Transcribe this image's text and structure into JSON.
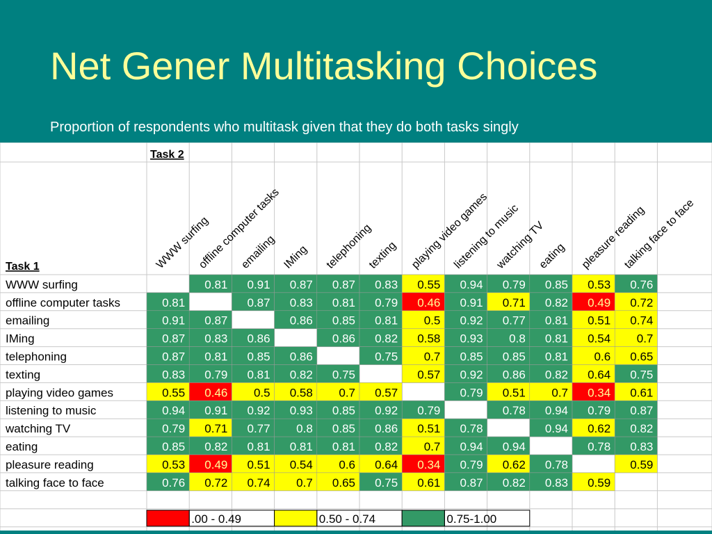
{
  "title": "Net Gener Multitasking Choices",
  "subtitle": "Proportion of respondents who multitask given that they do both tasks singly",
  "colors": {
    "background": "#008080",
    "title_text": "#FFFF99",
    "low": "#FF0000",
    "mid": "#FFFF00",
    "high": "#339966"
  },
  "chart_data": {
    "type": "heatmap",
    "title": "",
    "column_axis_label": "Task 2",
    "row_axis_label": "Task 1",
    "tasks": [
      "WWW surfing",
      "offline computer tasks",
      "emailing",
      "IMing",
      "telephoning",
      "texting",
      "playing video games",
      "listening to music",
      "watching TV",
      "eating",
      "pleasure reading",
      "talking face to face"
    ],
    "cells": [
      [
        "",
        "0.81",
        "0.91",
        "0.87",
        "0.87",
        "0.83",
        "0.55",
        "0.94",
        "0.79",
        "0.85",
        "0.53",
        "0.76"
      ],
      [
        "0.81",
        "",
        "0.87",
        "0.83",
        "0.81",
        "0.79",
        "0.46",
        "0.91",
        "0.71",
        "0.82",
        "0.49",
        "0.72"
      ],
      [
        "0.91",
        "0.87",
        "",
        "0.86",
        "0.85",
        "0.81",
        "0.5",
        "0.92",
        "0.77",
        "0.81",
        "0.51",
        "0.74"
      ],
      [
        "0.87",
        "0.83",
        "0.86",
        "",
        "0.86",
        "0.82",
        "0.58",
        "0.93",
        "0.8",
        "0.81",
        "0.54",
        "0.7"
      ],
      [
        "0.87",
        "0.81",
        "0.85",
        "0.86",
        "",
        "0.75",
        "0.7",
        "0.85",
        "0.85",
        "0.81",
        "0.6",
        "0.65"
      ],
      [
        "0.83",
        "0.79",
        "0.81",
        "0.82",
        "0.75",
        "",
        "0.57",
        "0.92",
        "0.86",
        "0.82",
        "0.64",
        "0.75"
      ],
      [
        "0.55",
        "0.46",
        "0.5",
        "0.58",
        "0.7",
        "0.57",
        "",
        "0.79",
        "0.51",
        "0.7",
        "0.34",
        "0.61"
      ],
      [
        "0.94",
        "0.91",
        "0.92",
        "0.93",
        "0.85",
        "0.92",
        "0.79",
        "",
        "0.78",
        "0.94",
        "0.79",
        "0.87"
      ],
      [
        "0.79",
        "0.71",
        "0.77",
        "0.8",
        "0.85",
        "0.86",
        "0.51",
        "0.78",
        "",
        "0.94",
        "0.62",
        "0.82"
      ],
      [
        "0.85",
        "0.82",
        "0.81",
        "0.81",
        "0.81",
        "0.82",
        "0.7",
        "0.94",
        "0.94",
        "",
        "0.78",
        "0.83"
      ],
      [
        "0.53",
        "0.49",
        "0.51",
        "0.54",
        "0.6",
        "0.64",
        "0.34",
        "0.79",
        "0.62",
        "0.78",
        "",
        "0.59"
      ],
      [
        "0.76",
        "0.72",
        "0.74",
        "0.7",
        "0.65",
        "0.75",
        "0.61",
        "0.87",
        "0.82",
        "0.83",
        "0.59",
        ""
      ]
    ],
    "legend": [
      {
        "label": ".00 - 0.49",
        "color": "#FF0000"
      },
      {
        "label": "0.50 - 0.74",
        "color": "#FFFF00"
      },
      {
        "label": "0.75-1.00",
        "color": "#339966"
      }
    ]
  }
}
